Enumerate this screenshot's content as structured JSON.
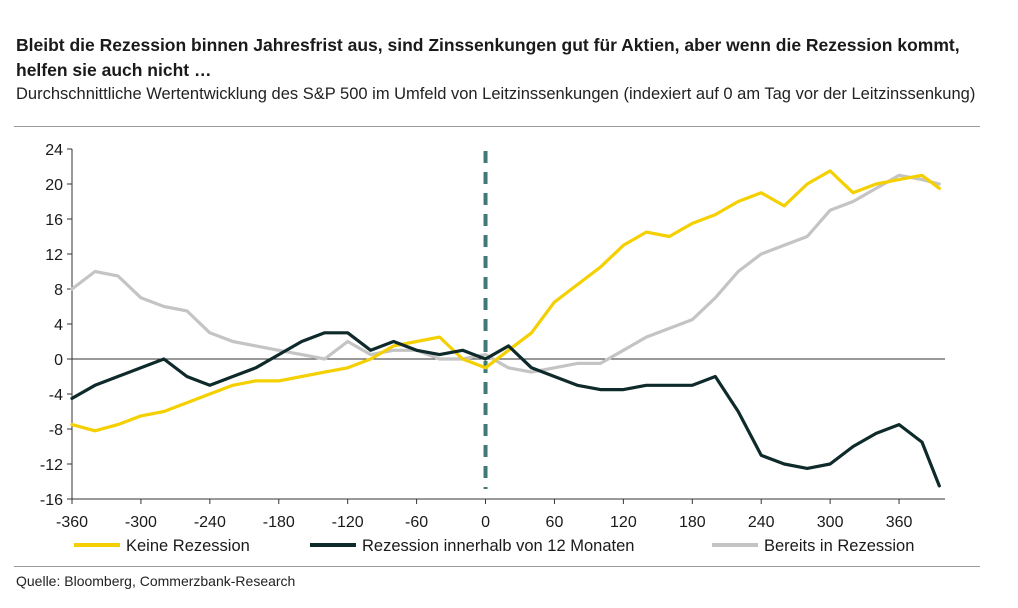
{
  "header": {
    "title": "Bleibt die Rezession binnen Jahresfrist aus, sind Zinssenkungen gut für Aktien, aber wenn die Rezession kommt, helfen sie auch nicht …",
    "subtitle": "Durchschnittliche Wertentwicklung des S&P 500 im Umfeld von Leitzinssenkungen (indexiert auf 0 am Tag vor der Leitzinssenkung)"
  },
  "footer": {
    "source": "Quelle: Bloomberg, Commerzbank-Research"
  },
  "colors": {
    "keine": "#f5d000",
    "innerhalb": "#0f2a2a",
    "bereits": "#c4c4c4",
    "marker": "#3f7a78"
  },
  "chart_data": {
    "type": "line",
    "title": "Bleibt die Rezession binnen Jahresfrist aus, sind Zinssenkungen gut für Aktien, aber wenn die Rezession kommt, helfen sie auch nicht …",
    "subtitle": "Durchschnittliche Wertentwicklung des S&P 500 im Umfeld von Leitzinssenkungen (indexiert auf 0 am Tag vor der Leitzinssenkung)",
    "xlabel": "",
    "ylabel": "",
    "xlim": [
      -360,
      400
    ],
    "ylim": [
      -16,
      24
    ],
    "x_ticks": [
      "-360",
      "-300",
      "-240",
      "-180",
      "-120",
      "-60",
      "0",
      "60",
      "120",
      "180",
      "240",
      "300",
      "360"
    ],
    "x_tick_values": [
      -360,
      -300,
      -240,
      -180,
      -120,
      -60,
      0,
      60,
      120,
      180,
      240,
      300,
      360
    ],
    "y_ticks": [
      "24",
      "20",
      "16",
      "12",
      "8",
      "4",
      "0",
      "-4",
      "-8",
      "-12",
      "-16"
    ],
    "y_tick_values": [
      24,
      20,
      16,
      12,
      8,
      4,
      0,
      -4,
      -8,
      -12,
      -16
    ],
    "vertical_marker_x": 0,
    "legend_position": "bottom",
    "series": [
      {
        "name": "Keine Rezession",
        "color_key": "keine",
        "x": [
          -360,
          -340,
          -320,
          -300,
          -280,
          -260,
          -240,
          -220,
          -200,
          -180,
          -160,
          -140,
          -120,
          -100,
          -80,
          -60,
          -40,
          -20,
          0,
          20,
          40,
          60,
          80,
          100,
          120,
          140,
          160,
          180,
          200,
          220,
          240,
          260,
          280,
          300,
          320,
          340,
          360,
          380,
          395
        ],
        "values": [
          -7.5,
          -8.2,
          -7.5,
          -6.5,
          -6.0,
          -5.0,
          -4.0,
          -3.0,
          -2.5,
          -2.5,
          -2.0,
          -1.5,
          -1.0,
          0.0,
          1.5,
          2.0,
          2.5,
          0.0,
          -1.0,
          1.0,
          3.0,
          6.5,
          8.5,
          10.5,
          13.0,
          14.5,
          14.0,
          15.5,
          16.5,
          18.0,
          19.0,
          17.5,
          20.0,
          21.5,
          19.0,
          20.0,
          20.5,
          21.0,
          19.5
        ]
      },
      {
        "name": "Rezession innerhalb von 12 Monaten",
        "color_key": "innerhalb",
        "x": [
          -360,
          -340,
          -320,
          -300,
          -280,
          -260,
          -240,
          -220,
          -200,
          -180,
          -160,
          -140,
          -120,
          -100,
          -80,
          -60,
          -40,
          -20,
          0,
          20,
          40,
          60,
          80,
          100,
          120,
          140,
          160,
          180,
          200,
          220,
          240,
          260,
          280,
          300,
          320,
          340,
          360,
          380,
          395
        ],
        "values": [
          -4.5,
          -3.0,
          -2.0,
          -1.0,
          0.0,
          -2.0,
          -3.0,
          -2.0,
          -1.0,
          0.5,
          2.0,
          3.0,
          3.0,
          1.0,
          2.0,
          1.0,
          0.5,
          1.0,
          0.0,
          1.5,
          -1.0,
          -2.0,
          -3.0,
          -3.5,
          -3.5,
          -3.0,
          -3.0,
          -3.0,
          -2.0,
          -6.0,
          -11.0,
          -12.0,
          -12.5,
          -12.0,
          -10.0,
          -8.5,
          -7.5,
          -9.5,
          -14.5
        ]
      },
      {
        "name": "Bereits in Rezession",
        "color_key": "bereits",
        "x": [
          -360,
          -340,
          -320,
          -300,
          -280,
          -260,
          -240,
          -220,
          -200,
          -180,
          -160,
          -140,
          -120,
          -100,
          -80,
          -60,
          -40,
          -20,
          0,
          20,
          40,
          60,
          80,
          100,
          120,
          140,
          160,
          180,
          200,
          220,
          240,
          260,
          280,
          300,
          320,
          340,
          360,
          380,
          395
        ],
        "values": [
          8.0,
          10.0,
          9.5,
          7.0,
          6.0,
          5.5,
          3.0,
          2.0,
          1.5,
          1.0,
          0.5,
          0.0,
          2.0,
          0.5,
          1.0,
          1.0,
          0.0,
          0.0,
          0.5,
          -1.0,
          -1.5,
          -1.0,
          -0.5,
          -0.5,
          1.0,
          2.5,
          3.5,
          4.5,
          7.0,
          10.0,
          12.0,
          13.0,
          14.0,
          17.0,
          18.0,
          19.5,
          21.0,
          20.5,
          20.0
        ]
      }
    ]
  }
}
